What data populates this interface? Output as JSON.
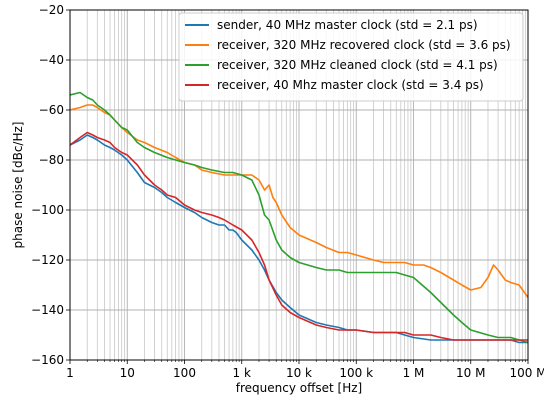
{
  "chart_data": {
    "type": "line",
    "title": "",
    "xlabel": "frequency offset [Hz]",
    "ylabel": "phase noise [dBc/Hz]",
    "xscale": "log",
    "xlim": [
      1,
      100000000
    ],
    "ylim": [
      -160,
      -20
    ],
    "grid": "on (major and minor)",
    "legend_position": "top-right",
    "xticks": [
      {
        "value": 1,
        "label": "1"
      },
      {
        "value": 10,
        "label": "10"
      },
      {
        "value": 100,
        "label": "100"
      },
      {
        "value": 1000,
        "label": "1 k"
      },
      {
        "value": 10000,
        "label": "10 k"
      },
      {
        "value": 100000,
        "label": "100 k"
      },
      {
        "value": 1000000,
        "label": "1 M"
      },
      {
        "value": 10000000,
        "label": "10 M"
      },
      {
        "value": 100000000,
        "label": "100 M"
      }
    ],
    "yticks": [
      {
        "value": -20,
        "label": "−20"
      },
      {
        "value": -40,
        "label": "−40"
      },
      {
        "value": -60,
        "label": "−60"
      },
      {
        "value": -80,
        "label": "−80"
      },
      {
        "value": -100,
        "label": "−100"
      },
      {
        "value": -120,
        "label": "−120"
      },
      {
        "value": -140,
        "label": "−140"
      },
      {
        "value": -160,
        "label": "−160"
      }
    ],
    "series": [
      {
        "name": "sender, 40 MHz master clock (std = 2.1 ps)",
        "color": "#1f77b4",
        "x": [
          1,
          1.5,
          2,
          2.5,
          3,
          4,
          5,
          6,
          8,
          10,
          15,
          20,
          30,
          40,
          50,
          70,
          100,
          150,
          200,
          300,
          400,
          500,
          600,
          700,
          800,
          1000,
          1500,
          2000,
          2500,
          3000,
          4000,
          5000,
          7000,
          10000,
          20000,
          30000,
          50000,
          70000,
          100000,
          200000,
          300000,
          500000,
          700000,
          1000000,
          2000000,
          3000000,
          5000000,
          7000000,
          10000000,
          20000000,
          30000000,
          50000000,
          70000000,
          100000000
        ],
        "y": [
          -74,
          -72,
          -70,
          -71,
          -72,
          -74,
          -75,
          -76,
          -78,
          -80,
          -85,
          -89,
          -91,
          -93,
          -95,
          -97,
          -99,
          -101,
          -103,
          -105,
          -106,
          -106,
          -108,
          -108,
          -109,
          -112,
          -116,
          -120,
          -124,
          -128,
          -133,
          -136,
          -139,
          -142,
          -145,
          -146,
          -147,
          -148,
          -148,
          -149,
          -149,
          -149,
          -150,
          -151,
          -152,
          -152,
          -152,
          -152,
          -152,
          -152,
          -152,
          -152,
          -153,
          -153
        ]
      },
      {
        "name": "receiver, 320 MHz recovered clock (std = 3.6 ps)",
        "color": "#ff7f0e",
        "x": [
          1,
          1.5,
          2,
          2.5,
          3,
          4,
          5,
          6,
          8,
          10,
          15,
          20,
          30,
          50,
          70,
          100,
          150,
          200,
          300,
          500,
          700,
          1000,
          1500,
          2000,
          2500,
          3000,
          3500,
          4000,
          5000,
          7000,
          10000,
          20000,
          30000,
          50000,
          70000,
          100000,
          200000,
          300000,
          500000,
          700000,
          1000000,
          1500000,
          2000000,
          3000000,
          5000000,
          7000000,
          10000000,
          15000000,
          20000000,
          25000000,
          30000000,
          40000000,
          50000000,
          70000000,
          100000000
        ],
        "y": [
          -60,
          -59,
          -58,
          -58,
          -59,
          -61,
          -62,
          -64,
          -67,
          -69,
          -72,
          -73,
          -75,
          -77,
          -79,
          -81,
          -82,
          -84,
          -85,
          -86,
          -86,
          -86,
          -86,
          -88,
          -92,
          -90,
          -95,
          -97,
          -102,
          -107,
          -110,
          -113,
          -115,
          -117,
          -117,
          -118,
          -120,
          -121,
          -121,
          -121,
          -122,
          -122,
          -123,
          -125,
          -128,
          -130,
          -132,
          -131,
          -127,
          -122,
          -124,
          -128,
          -129,
          -130,
          -135
        ]
      },
      {
        "name": "receiver, 320 MHz cleaned clock (std = 4.1 ps)",
        "color": "#2ca02c",
        "x": [
          1,
          1.5,
          2,
          2.5,
          3,
          4,
          5,
          6,
          8,
          10,
          15,
          20,
          30,
          50,
          70,
          100,
          150,
          200,
          300,
          500,
          700,
          1000,
          1500,
          2000,
          2500,
          3000,
          4000,
          5000,
          7000,
          10000,
          20000,
          30000,
          50000,
          70000,
          100000,
          200000,
          300000,
          500000,
          700000,
          1000000,
          2000000,
          3000000,
          5000000,
          7000000,
          10000000,
          20000000,
          30000000,
          50000000,
          70000000,
          100000000
        ],
        "y": [
          -54,
          -53,
          -55,
          -56,
          -58,
          -60,
          -62,
          -64,
          -67,
          -68,
          -73,
          -75,
          -77,
          -79,
          -80,
          -81,
          -82,
          -83,
          -84,
          -85,
          -85,
          -86,
          -88,
          -94,
          -102,
          -104,
          -112,
          -116,
          -119,
          -121,
          -123,
          -124,
          -124,
          -125,
          -125,
          -125,
          -125,
          -125,
          -126,
          -127,
          -133,
          -137,
          -142,
          -145,
          -148,
          -150,
          -151,
          -151,
          -152,
          -153
        ]
      },
      {
        "name": "receiver, 40 Mhz master clock (std = 3.4 ps)",
        "color": "#d62728",
        "x": [
          1,
          1.5,
          2,
          2.5,
          3,
          4,
          5,
          6,
          8,
          10,
          15,
          20,
          30,
          40,
          50,
          70,
          100,
          150,
          200,
          300,
          400,
          500,
          700,
          1000,
          1500,
          2000,
          2500,
          3000,
          4000,
          5000,
          7000,
          10000,
          20000,
          30000,
          50000,
          70000,
          100000,
          200000,
          300000,
          500000,
          700000,
          1000000,
          2000000,
          3000000,
          5000000,
          7000000,
          10000000,
          20000000,
          30000000,
          50000000,
          70000000,
          100000000
        ],
        "y": [
          -74,
          -71,
          -69,
          -70,
          -71,
          -72,
          -73,
          -75,
          -77,
          -78,
          -82,
          -86,
          -90,
          -92,
          -94,
          -95,
          -98,
          -100,
          -101,
          -102,
          -103,
          -104,
          -106,
          -108,
          -112,
          -117,
          -122,
          -128,
          -134,
          -138,
          -141,
          -143,
          -146,
          -147,
          -148,
          -148,
          -148,
          -149,
          -149,
          -149,
          -149,
          -150,
          -150,
          -151,
          -152,
          -152,
          -152,
          -152,
          -152,
          -152,
          -152,
          -152
        ]
      }
    ]
  }
}
